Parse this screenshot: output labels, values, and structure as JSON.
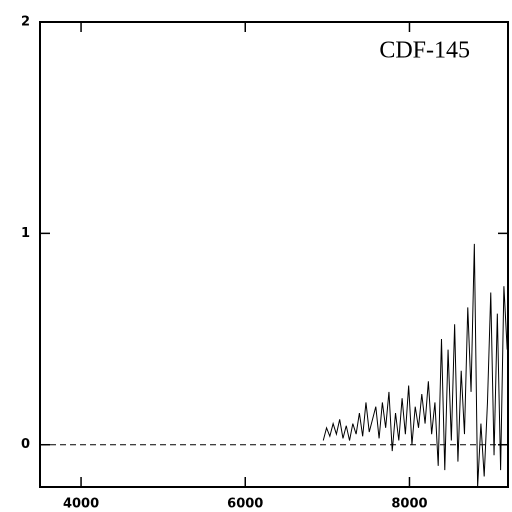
{
  "chart_data": {
    "type": "line",
    "annotation": "CDF-145",
    "xlim": [
      3500,
      9200
    ],
    "ylim": [
      -0.2,
      2
    ],
    "xticks": [
      4000,
      6000,
      8000
    ],
    "yticks": [
      0,
      1,
      2
    ],
    "hline": 0,
    "x": [
      6950,
      6990,
      7030,
      7070,
      7110,
      7150,
      7190,
      7230,
      7270,
      7310,
      7350,
      7390,
      7430,
      7470,
      7510,
      7550,
      7590,
      7630,
      7670,
      7710,
      7750,
      7790,
      7830,
      7870,
      7910,
      7950,
      7990,
      8030,
      8070,
      8110,
      8150,
      8190,
      8230,
      8270,
      8310,
      8350,
      8390,
      8430,
      8470,
      8510,
      8550,
      8590,
      8630,
      8670,
      8710,
      8750,
      8790,
      8830,
      8870,
      8910,
      8950,
      8990,
      9030,
      9070,
      9110,
      9150,
      9190
    ],
    "series": [
      {
        "color": "#000000",
        "values": [
          0.02,
          0.08,
          0.04,
          0.1,
          0.05,
          0.12,
          0.03,
          0.09,
          0.02,
          0.1,
          0.05,
          0.15,
          0.04,
          0.2,
          0.06,
          0.12,
          0.18,
          0.03,
          0.2,
          0.08,
          0.25,
          -0.03,
          0.15,
          0.02,
          0.22,
          0.05,
          0.28,
          0.0,
          0.18,
          0.08,
          0.24,
          0.1,
          0.3,
          0.05,
          0.2,
          -0.1,
          0.5,
          -0.12,
          0.45,
          0.02,
          0.57,
          -0.08,
          0.35,
          0.05,
          0.65,
          0.25,
          0.95,
          -0.2,
          0.1,
          -0.15,
          0.2,
          0.72,
          -0.05,
          0.62,
          -0.12,
          0.75,
          0.45
        ]
      }
    ]
  }
}
